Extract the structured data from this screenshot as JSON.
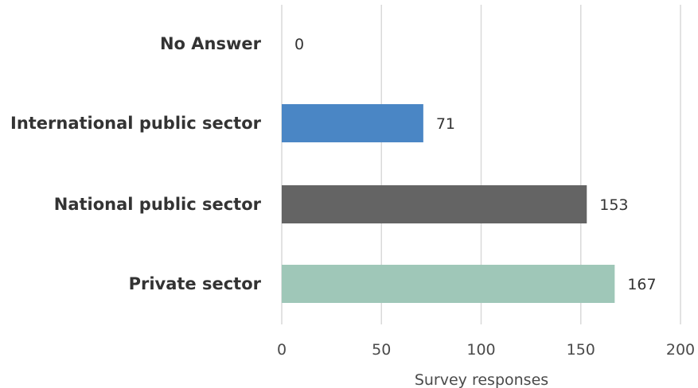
{
  "chart_data": {
    "type": "bar",
    "orientation": "horizontal",
    "categories": [
      "No Answer",
      "International public sector",
      "National public sector",
      "Private sector"
    ],
    "values": [
      0,
      71,
      153,
      167
    ],
    "colors": [
      "#4a86c5",
      "#4a86c5",
      "#646464",
      "#9fc7b8"
    ],
    "xlabel": "Survey responses",
    "xlim": [
      0,
      200
    ],
    "xticks": [
      0,
      50,
      100,
      150,
      200
    ],
    "xtick_labels": [
      "0",
      "50",
      "100",
      "150",
      "200"
    ],
    "value_labels": [
      "0",
      "71",
      "153",
      "167"
    ],
    "grid": "vertical"
  }
}
